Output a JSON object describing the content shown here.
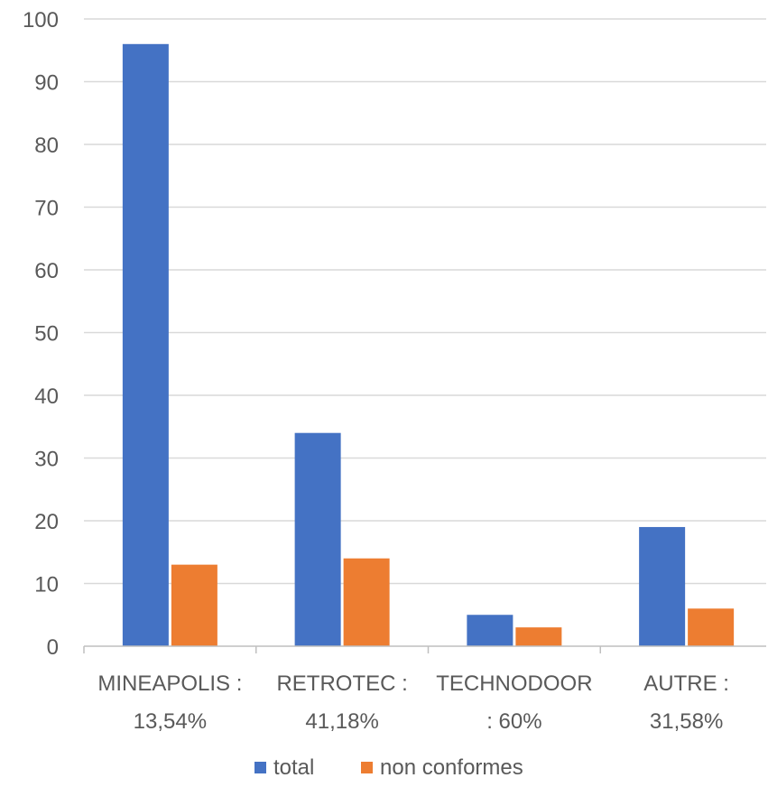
{
  "chart_data": {
    "type": "bar",
    "categories": [
      [
        "MINEAPOLIS :",
        "13,54%"
      ],
      [
        "RETROTEC :",
        "41,18%"
      ],
      [
        "TECHNODOOR",
        ": 60%"
      ],
      [
        "AUTRE :",
        "31,58%"
      ]
    ],
    "series": [
      {
        "name": "total",
        "values": [
          96,
          34,
          5,
          19
        ],
        "color": "#4472C4"
      },
      {
        "name": "non conformes",
        "values": [
          13,
          14,
          3,
          6
        ],
        "color": "#ED7D31"
      }
    ],
    "ylim": [
      0,
      100
    ],
    "yticks": [
      0,
      10,
      20,
      30,
      40,
      50,
      60,
      70,
      80,
      90,
      100
    ],
    "grid": true,
    "legend": "bottom",
    "gridColor": "#D9D9D9",
    "axisColor": "#BFBFBF",
    "textColor": "#595959"
  }
}
